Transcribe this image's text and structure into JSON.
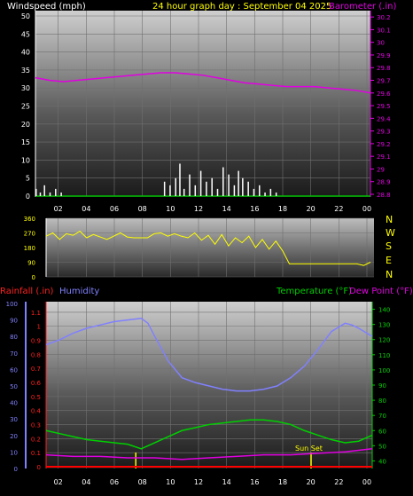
{
  "header": {
    "wind_label": "Windspeed (mph)",
    "date_label": "24 hour graph day : September 04 2025",
    "baro_label": "Barometer (.in)"
  },
  "colors": {
    "wind": "#ffffff",
    "baro": "#e000e0",
    "direction": "#ffff00",
    "humidity": "#8080ff",
    "temperature": "#00d000",
    "dewpoint": "#e000e0",
    "rainfall": "#ff0000",
    "sunset": "#ffff00",
    "grid": "#707070"
  },
  "direction_labels": [
    "N",
    "W",
    "S",
    "E",
    "N"
  ],
  "bottom_header": {
    "rain_label": "Rainfall (.in)",
    "humidity_label": "Humidity",
    "temp_label": "Temperature (°F)",
    "dew_label": "Dew Point (°F)"
  },
  "sunset_label": "Sun Set",
  "chart_data": [
    {
      "type": "line",
      "x_ticks": [
        "02",
        "04",
        "06",
        "08",
        "10",
        "12",
        "14",
        "16",
        "18",
        "20",
        "22",
        "00"
      ],
      "y_left": {
        "label": "Windspeed (mph)",
        "ticks": [
          "0",
          "5",
          "10",
          "15",
          "20",
          "25",
          "30",
          "35",
          "40",
          "45",
          "50"
        ],
        "range": [
          0,
          50
        ]
      },
      "y_right": {
        "label": "Barometer (.in)",
        "ticks": [
          "28.8",
          "28.9",
          "29",
          "29.1",
          "29.2",
          "29.3",
          "29.4",
          "29.5",
          "29.6",
          "29.7",
          "29.8",
          "29.9",
          "30",
          "30.1",
          "30.2"
        ],
        "range": [
          28.8,
          30.25
        ]
      },
      "series": [
        {
          "name": "Barometer (.in)",
          "axis": "right",
          "x": [
            0,
            1,
            2,
            3,
            4,
            5,
            6,
            7,
            8,
            9,
            10,
            11,
            12,
            13,
            14,
            15,
            16,
            17,
            18,
            19,
            20,
            21,
            22,
            23,
            24
          ],
          "values": [
            29.72,
            29.7,
            29.69,
            29.7,
            29.71,
            29.72,
            29.73,
            29.74,
            29.75,
            29.76,
            29.76,
            29.75,
            29.74,
            29.72,
            29.7,
            29.68,
            29.67,
            29.66,
            29.65,
            29.65,
            29.65,
            29.64,
            29.63,
            29.62,
            29.6
          ]
        },
        {
          "name": "Windspeed (mph)",
          "axis": "left",
          "x": [
            0.0,
            0.3,
            0.6,
            1.0,
            1.4,
            1.8,
            9.2,
            9.6,
            10.0,
            10.3,
            10.6,
            11.0,
            11.4,
            11.8,
            12.2,
            12.6,
            13.0,
            13.4,
            13.8,
            14.2,
            14.5,
            14.8,
            15.2,
            15.6,
            16.0,
            16.4,
            16.8,
            17.2,
            17.6
          ],
          "values": [
            2,
            1,
            3,
            1,
            2,
            1,
            4,
            3,
            5,
            9,
            2,
            6,
            3,
            7,
            4,
            5,
            2,
            8,
            6,
            3,
            7,
            5,
            4,
            2,
            3,
            1,
            2,
            1,
            0
          ]
        }
      ]
    },
    {
      "type": "line",
      "x_ticks": [
        "02",
        "04",
        "06",
        "08",
        "10",
        "12",
        "14",
        "16",
        "18",
        "20",
        "22",
        "00"
      ],
      "y_left": {
        "ticks": [
          "0",
          "90",
          "180",
          "270",
          "360"
        ],
        "range": [
          0,
          360
        ]
      },
      "y_right": {
        "ticks": [
          "N",
          "W",
          "S",
          "E",
          "N"
        ]
      },
      "series": [
        {
          "name": "Wind direction",
          "x": [
            0,
            0.5,
            1,
            1.5,
            2,
            2.5,
            3,
            3.5,
            4,
            4.5,
            5,
            5.5,
            6,
            6.5,
            7,
            7.5,
            8,
            8.5,
            9,
            9.5,
            10,
            10.5,
            11,
            11.5,
            12,
            12.5,
            13,
            13.5,
            14,
            14.5,
            15,
            15.5,
            16,
            16.5,
            17,
            17.5,
            18,
            18.5,
            19,
            19.5,
            20,
            20.5,
            21,
            21.5,
            22,
            22.5,
            23,
            23.5,
            24
          ],
          "values": [
            250,
            270,
            230,
            265,
            255,
            280,
            240,
            260,
            245,
            230,
            250,
            270,
            245,
            240,
            240,
            240,
            265,
            270,
            250,
            265,
            250,
            240,
            270,
            225,
            255,
            200,
            260,
            190,
            240,
            210,
            250,
            180,
            230,
            170,
            220,
            160,
            80,
            80,
            80,
            80,
            80,
            80,
            80,
            80,
            80,
            80,
            80,
            70,
            90
          ]
        }
      ]
    },
    {
      "type": "line",
      "x_ticks": [
        "02",
        "04",
        "06",
        "08",
        "10",
        "12",
        "14",
        "16",
        "18",
        "20",
        "22",
        "00"
      ],
      "y_left_outer": {
        "label": "Humidity",
        "ticks": [
          "0",
          "10",
          "20",
          "30",
          "40",
          "50",
          "60",
          "70",
          "80",
          "90",
          "100"
        ],
        "range": [
          0,
          100
        ]
      },
      "y_left_inner": {
        "label": "Rainfall (.in)",
        "ticks": [
          "0",
          "0.1",
          "0.2",
          "0.3",
          "0.4",
          "0.5",
          "0.6",
          "0.7",
          "0.8",
          "0.9",
          "1",
          "1.1"
        ],
        "range": [
          0,
          1.15
        ]
      },
      "y_right": {
        "label": "Temperature (°F)",
        "ticks": [
          "40",
          "50",
          "60",
          "70",
          "80",
          "90",
          "100",
          "110",
          "120",
          "130",
          "140"
        ],
        "range": [
          35,
          145
        ]
      },
      "series": [
        {
          "name": "Humidity",
          "axis": "humidity",
          "x": [
            0,
            1,
            2,
            3,
            4,
            5,
            6,
            7,
            7.5,
            8,
            9,
            10,
            11,
            12,
            13,
            14,
            15,
            16,
            17,
            18,
            19,
            20,
            21,
            22,
            22.5,
            23,
            24
          ],
          "values": [
            75,
            78,
            82,
            85,
            87,
            89,
            90,
            91,
            88,
            80,
            65,
            55,
            52,
            50,
            48,
            47,
            47,
            48,
            50,
            55,
            62,
            72,
            83,
            88,
            87,
            85,
            80
          ]
        },
        {
          "name": "Temperature (°F)",
          "axis": "temp",
          "x": [
            0,
            1,
            2,
            3,
            4,
            5,
            6,
            7,
            8,
            9,
            10,
            11,
            12,
            13,
            14,
            15,
            16,
            17,
            18,
            19,
            20,
            21,
            22,
            23,
            24
          ],
          "values": [
            60,
            58,
            56,
            54,
            53,
            52,
            51,
            48,
            52,
            56,
            60,
            62,
            64,
            65,
            66,
            67,
            67,
            66,
            64,
            60,
            57,
            54,
            52,
            53,
            57
          ]
        },
        {
          "name": "Dew Point (°F)",
          "axis": "temp",
          "x": [
            0,
            2,
            4,
            6,
            8,
            10,
            12,
            14,
            16,
            18,
            20,
            22,
            24
          ],
          "values": [
            44,
            43,
            43,
            42,
            42,
            41,
            42,
            43,
            44,
            44,
            45,
            46,
            48
          ]
        },
        {
          "name": "Rainfall (.in)",
          "axis": "rain",
          "x": [
            0,
            24
          ],
          "values": [
            0,
            0
          ]
        }
      ],
      "markers": [
        {
          "label": "Sun Set",
          "x": 19.5
        },
        {
          "label": "",
          "x": 6.6
        }
      ]
    }
  ]
}
